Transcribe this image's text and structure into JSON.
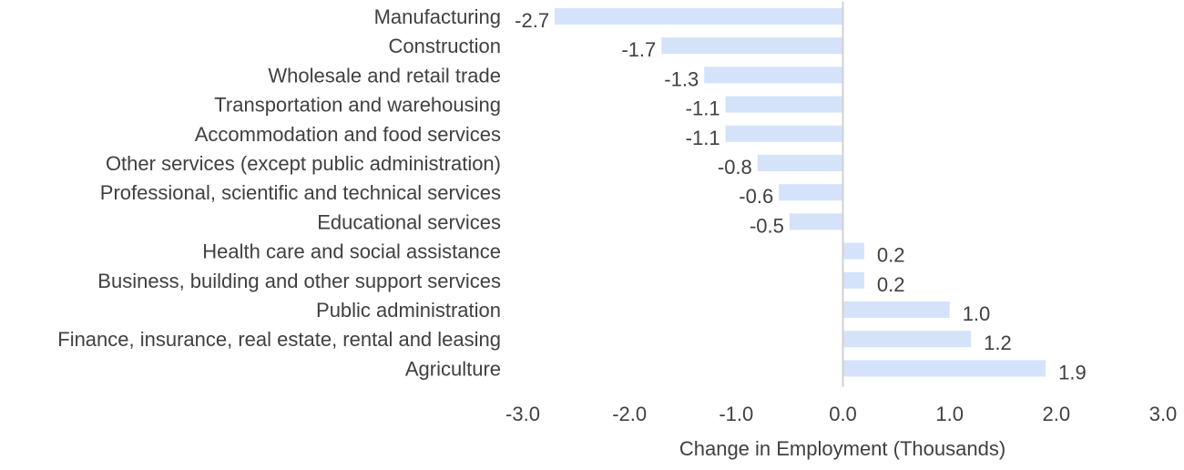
{
  "chart_data": {
    "type": "bar",
    "orientation": "horizontal",
    "categories": [
      "Manufacturing",
      "Construction",
      "Wholesale and retail trade",
      "Transportation and warehousing",
      "Accommodation and food services",
      "Other services (except public administration)",
      "Professional, scientific and technical services",
      "Educational services",
      "Health care and social assistance",
      "Business, building and other support services",
      "Public administration",
      "Finance, insurance, real estate, rental and leasing",
      "Agriculture"
    ],
    "values": [
      -2.7,
      -1.7,
      -1.3,
      -1.1,
      -1.1,
      -0.8,
      -0.6,
      -0.5,
      0.2,
      0.2,
      1.0,
      1.2,
      1.9
    ],
    "value_labels": [
      "-2.7",
      "-1.7",
      "-1.3",
      "-1.1",
      "-1.1",
      "-0.8",
      "-0.6",
      "-0.5",
      "0.2",
      "0.2",
      "1.0",
      "1.2",
      "1.9"
    ],
    "xlabel": "Change in Employment (Thousands)",
    "xlim": [
      -3.0,
      3.0
    ],
    "xticks": [
      -3.0,
      -2.0,
      -1.0,
      0.0,
      1.0,
      2.0,
      3.0
    ],
    "xtick_labels": [
      "-3.0",
      "-2.0",
      "-1.0",
      "0.0",
      "1.0",
      "2.0",
      "3.0"
    ],
    "grid": false,
    "legend": "none",
    "bar_color": "#D4E3FA",
    "axis_color": "#D0D0D0",
    "text_color": "#404040"
  }
}
